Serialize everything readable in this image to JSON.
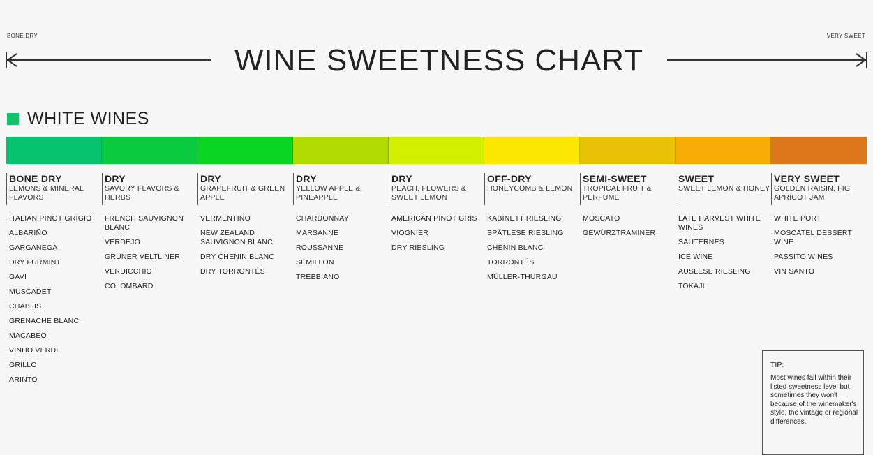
{
  "scale": {
    "left_label": "BONE DRY",
    "right_label": "VERY SWEET"
  },
  "title": "WINE SWEETNESS CHART",
  "section": {
    "title": "WHITE WINES",
    "swatch_color": "#15c06a"
  },
  "columns": [
    {
      "level": "BONE DRY",
      "flavor": "LEMONS & MINERAL FLAVORS",
      "color": "#08c46f",
      "wines": [
        "ITALIAN PINOT GRIGIO",
        "ALBARIÑO",
        "GARGANEGA",
        "DRY FURMINT",
        "GAVI",
        "MUSCADET",
        "CHABLIS",
        "GRENACHE BLANC",
        "MACABEO",
        "VINHO VERDE",
        "GRILLO",
        "ARINTO"
      ]
    },
    {
      "level": "DRY",
      "flavor": "SAVORY FLAVORS & HERBS",
      "color": "#0acb3f",
      "wines": [
        "FRENCH SAUVIGNON BLANC",
        "VERDEJO",
        "GRÜNER VELTLINER",
        "VERDICCHIO",
        "COLOMBARD"
      ]
    },
    {
      "level": "DRY",
      "flavor": "GRAPEFRUIT & GREEN APPLE",
      "color": "#0ad621",
      "wines": [
        "VERMENTINO",
        "NEW ZEALAND SAUVIGNON BLANC",
        "DRY CHENIN BLANC",
        "DRY TORRONTÉS"
      ]
    },
    {
      "level": "DRY",
      "flavor": "YELLOW APPLE & PINEAPPLE",
      "color": "#b2db02",
      "wines": [
        "CHARDONNAY",
        "MARSANNE",
        "ROUSSANNE",
        "SÉMILLON",
        "TREBBIANO"
      ]
    },
    {
      "level": "DRY",
      "flavor": "PEACH, FLOWERS & SWEET LEMON",
      "color": "#d1f000",
      "wines": [
        "AMERICAN PINOT GRIS",
        "VIOGNIER",
        "DRY RIESLING"
      ]
    },
    {
      "level": "OFF-DRY",
      "flavor": "HONEYCOMB & LEMON",
      "color": "#fbe700",
      "wines": [
        "KABINETT RIESLING",
        "SPÄTLESE RIESLING",
        "CHENIN BLANC",
        "TORRONTÉS",
        "MÜLLER-THURGAU"
      ]
    },
    {
      "level": "SEMI-SWEET",
      "flavor": "TROPICAL FRUIT & PERFUME",
      "color": "#e8c306",
      "wines": [
        "MOSCATO",
        "GEWÜRZTRAMINER"
      ]
    },
    {
      "level": "SWEET",
      "flavor": "SWEET LEMON & HONEY",
      "color": "#f8ad06",
      "wines": [
        "LATE HARVEST WHITE WINES",
        "SAUTERNES",
        "ICE WINE",
        "AUSLESE RIESLING",
        "TOKAJI"
      ]
    },
    {
      "level": "VERY SWEET",
      "flavor": "GOLDEN RAISIN, FIG APRICOT JAM",
      "color": "#dc781b",
      "wines": [
        "WHITE PORT",
        "MOSCATEL DESSERT WINE",
        "PASSITO WINES",
        "VIN SANTO"
      ]
    }
  ],
  "tip": {
    "label": "TIP:",
    "text": "Most wines fall within their listed sweetness level but sometimes they won't because of the winemaker's style, the vintage or regional differences."
  }
}
